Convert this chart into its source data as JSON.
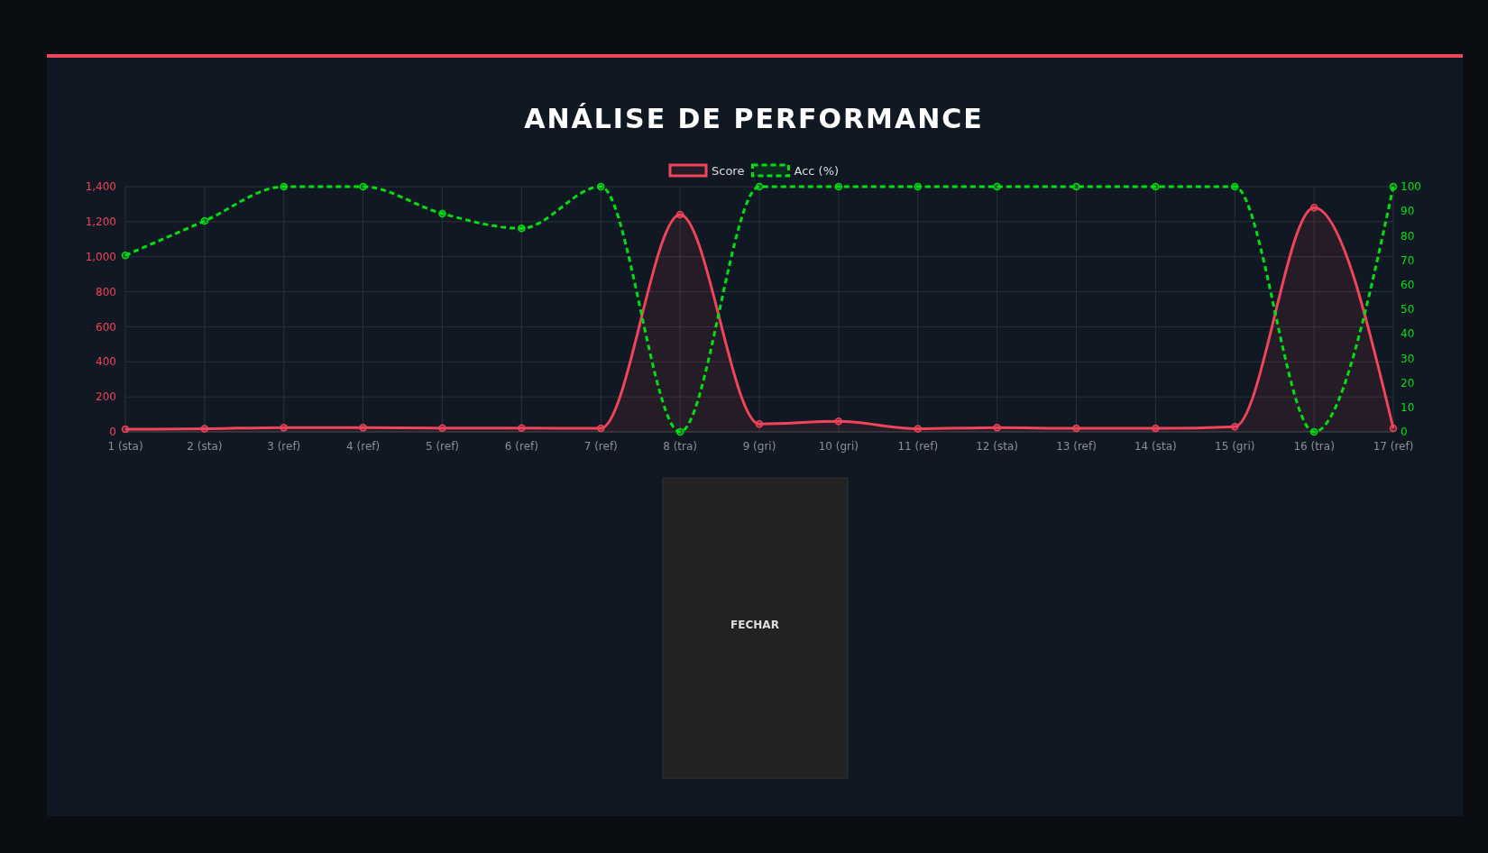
{
  "chart_data": {
    "type": "line",
    "title": "ANÁLISE DE PERFORMANCE",
    "categories": [
      "1 (sta)",
      "2 (sta)",
      "3 (ref)",
      "4 (ref)",
      "5 (ref)",
      "6 (ref)",
      "7 (ref)",
      "8 (tra)",
      "9 (gri)",
      "10 (gri)",
      "11 (ref)",
      "12 (sta)",
      "13 (ref)",
      "14 (sta)",
      "15 (gri)",
      "16 (tra)",
      "17 (ref)"
    ],
    "series": [
      {
        "name": "Score",
        "type": "area",
        "color": "#f0445a",
        "values": [
          15,
          18,
          25,
          25,
          22,
          22,
          20,
          1240,
          45,
          60,
          18,
          25,
          20,
          20,
          30,
          1280,
          20
        ]
      },
      {
        "name": "Acc (%)",
        "axis": "y2",
        "color": "#00e010",
        "line_style": "dashed",
        "values": [
          72,
          86,
          100,
          100,
          89,
          83,
          100,
          0,
          100,
          100,
          100,
          100,
          100,
          100,
          100,
          0,
          100
        ]
      }
    ],
    "ylim": [
      0,
      1400
    ],
    "yticks": [
      0,
      200,
      400,
      600,
      800,
      {
        "value": 1000,
        "label": "1,000"
      },
      {
        "value": 1200,
        "label": "1,200"
      },
      {
        "value": 1400,
        "label": "1,400"
      }
    ],
    "y2lim": [
      0,
      100
    ],
    "y2ticks": [
      0,
      10,
      20,
      30,
      40,
      50,
      60,
      70,
      80,
      90,
      100
    ],
    "grid": true,
    "legend": "top",
    "marker": "circle",
    "annotations": [
      "FECHAR"
    ]
  }
}
